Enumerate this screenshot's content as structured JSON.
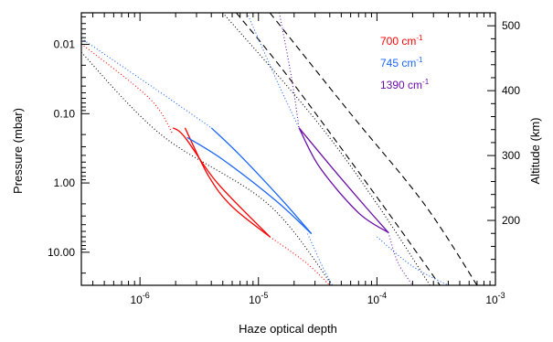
{
  "chart_data": {
    "type": "line",
    "xlabel": "Haze optical depth",
    "ylabel": "Pressure (mbar)",
    "y2label": "Altitude (km)",
    "xscale": "log",
    "yscale": "log",
    "yinverted": true,
    "xlim": [
      3.2e-07,
      0.001
    ],
    "ylim": [
      0.0035,
      30
    ],
    "y2lim": [
      100,
      520
    ],
    "grid": false,
    "legend_position": "top-right",
    "x_ticks": [
      {
        "value": 1e-06,
        "base": "10",
        "exp": "-6"
      },
      {
        "value": 1e-05,
        "base": "10",
        "exp": "-5"
      },
      {
        "value": 0.0001,
        "base": "10",
        "exp": "-4"
      },
      {
        "value": 0.001,
        "base": "10",
        "exp": "-3"
      }
    ],
    "y_ticks": [
      {
        "value": 0.01,
        "label": "0.01"
      },
      {
        "value": 0.1,
        "label": "0.10"
      },
      {
        "value": 1,
        "label": "1.00"
      },
      {
        "value": 10,
        "label": "10.00"
      }
    ],
    "y2_ticks": [
      {
        "value": 200,
        "label": "200"
      },
      {
        "value": 300,
        "label": "300"
      },
      {
        "value": 400,
        "label": "400"
      },
      {
        "value": 500,
        "label": "500"
      }
    ],
    "legend": [
      {
        "prefix": "700 cm",
        "sup": "-1",
        "color": "#ff0000"
      },
      {
        "prefix": "745 cm",
        "sup": "-1",
        "color": "#1a66ff"
      },
      {
        "prefix": "1390 cm",
        "sup": "-1",
        "color": "#6a0da8"
      }
    ],
    "series": [
      {
        "color": "#000000",
        "style": "dotted",
        "points": [
          [
            3.2e-07,
            0.013
          ],
          [
            1.5e-06,
            0.2
          ],
          [
            1.2e-05,
            2.0
          ],
          [
            4.2e-05,
            30
          ]
        ]
      },
      {
        "color": "#000000",
        "style": "dashed",
        "points": [
          [
            6.5e-06,
            0.0035
          ],
          [
            1.8e-05,
            0.03
          ],
          [
            0.00011,
            2.0
          ],
          [
            0.00034,
            30
          ]
        ]
      },
      {
        "color": "#000000",
        "style": "dashed",
        "points": [
          [
            1.25e-05,
            0.0035
          ],
          [
            6e-05,
            0.1
          ],
          [
            0.00025,
            2.0
          ],
          [
            0.0007,
            30
          ]
        ]
      },
      {
        "color": "#000000",
        "style": "dotted",
        "points": [
          [
            5e-06,
            0.0035
          ],
          [
            3e-05,
            0.12
          ],
          [
            0.0001,
            2.0
          ],
          [
            0.00028,
            30
          ]
        ]
      },
      {
        "color": "#ff0000",
        "style": "dotted",
        "points": [
          [
            3.2e-07,
            0.0098
          ],
          [
            1.2e-06,
            0.06
          ],
          [
            1.9e-06,
            0.2
          ]
        ]
      },
      {
        "color": "#ff0000",
        "style": "dotted",
        "points": [
          [
            1.25e-05,
            6.0
          ],
          [
            2.5e-05,
            14
          ],
          [
            4e-05,
            30
          ]
        ]
      },
      {
        "color": "#ff0000",
        "style": "solid",
        "points": [
          [
            2.4e-06,
            0.16
          ],
          [
            3.8e-06,
            0.8
          ],
          [
            6e-06,
            2.2
          ],
          [
            1.25e-05,
            6.0
          ]
        ]
      },
      {
        "color": "#ff0000",
        "style": "solid",
        "points": [
          [
            1.9e-06,
            0.16
          ],
          [
            2.4e-06,
            0.22
          ],
          [
            4.5e-06,
            1.0
          ],
          [
            1.25e-05,
            6.0
          ]
        ]
      },
      {
        "color": "#1a66ff",
        "style": "dotted",
        "points": [
          [
            3.2e-07,
            0.0082
          ],
          [
            1.5e-06,
            0.05
          ],
          [
            4e-06,
            0.16
          ]
        ]
      },
      {
        "color": "#1a66ff",
        "style": "dotted",
        "points": [
          [
            2.6e-05,
            5.4
          ],
          [
            3.4e-05,
            15
          ],
          [
            4.2e-05,
            30
          ]
        ]
      },
      {
        "color": "#1a66ff",
        "style": "solid",
        "points": [
          [
            4e-06,
            0.16
          ],
          [
            7e-06,
            0.4
          ],
          [
            1.6e-05,
            1.8
          ],
          [
            2.8e-05,
            5.4
          ]
        ]
      },
      {
        "color": "#1a66ff",
        "style": "solid",
        "points": [
          [
            2.5e-06,
            0.22
          ],
          [
            5e-06,
            0.46
          ],
          [
            1.4e-05,
            1.8
          ],
          [
            2.8e-05,
            5.4
          ]
        ]
      },
      {
        "color": "#1a66ff",
        "style": "dotted",
        "points": [
          [
            0.0001,
            6.0
          ],
          [
            0.0002,
            16
          ],
          [
            0.0004,
            30
          ]
        ]
      },
      {
        "color": "#1a66ff",
        "style": "dotted",
        "points": [
          [
            8e-06,
            0.0035
          ],
          [
            1.5e-05,
            0.04
          ],
          [
            2.2e-05,
            0.16
          ]
        ]
      },
      {
        "color": "#6a0da8",
        "style": "dotted",
        "points": [
          [
            1.5e-05,
            0.0035
          ],
          [
            1.9e-05,
            0.03
          ],
          [
            2.2e-05,
            0.16
          ]
        ]
      },
      {
        "color": "#6a0da8",
        "style": "dotted",
        "points": [
          [
            0.000125,
            5.2
          ],
          [
            0.00015,
            14
          ],
          [
            0.0002,
            30
          ]
        ]
      },
      {
        "color": "#6a0da8",
        "style": "solid",
        "points": [
          [
            2.2e-05,
            0.16
          ],
          [
            3.3e-05,
            0.6
          ],
          [
            7e-05,
            2.7
          ],
          [
            0.000125,
            5.2
          ]
        ]
      },
      {
        "color": "#6a0da8",
        "style": "solid",
        "points": [
          [
            2.2e-05,
            0.16
          ],
          [
            4e-05,
            0.55
          ],
          [
            8e-05,
            2.2
          ],
          [
            0.000125,
            5.2
          ]
        ]
      }
    ]
  }
}
